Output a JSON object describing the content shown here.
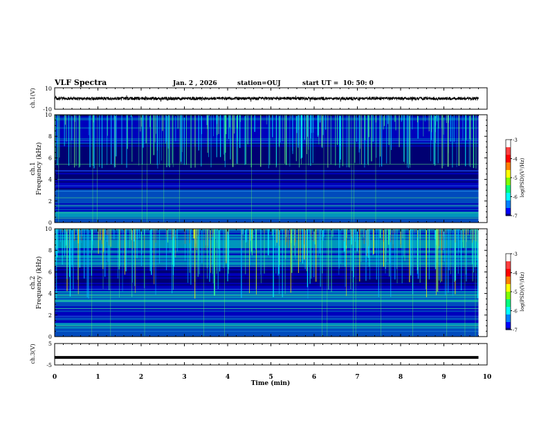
{
  "header": {
    "title": "VLF Spectra",
    "date": "Jan. 2 , 2026",
    "station": "station=OUJ",
    "start": "start UT =  10: 50: 0"
  },
  "colors": {
    "colormap": [
      "#00007f",
      "#0000ff",
      "#0080ff",
      "#00ffff",
      "#80ff80",
      "#ffff00",
      "#ff8000",
      "#ff0000",
      "#7f0000",
      "#ffffff"
    ]
  },
  "chart_data": [
    {
      "type": "line",
      "name": "ch1-waveform",
      "ylabel": "ch.1(V)",
      "ylim": [
        -10,
        10
      ],
      "yticks": [
        "10",
        "-10"
      ],
      "xlim": [
        0,
        10
      ],
      "series": [
        {
          "name": "ch.1 amplitude",
          "approx_mean": 0,
          "approx_band": [
            -1.5,
            1.5
          ]
        }
      ]
    },
    {
      "type": "heatmap",
      "name": "ch1-spectrogram",
      "ylabel": "ch.1\nFrequency (kHz)",
      "ylabel_lines": [
        "ch.1",
        "Frequency (kHz)"
      ],
      "ylim": [
        0,
        10
      ],
      "yticks": [
        "0",
        "2",
        "4",
        "6",
        "8",
        "10"
      ],
      "xlim": [
        0,
        10
      ],
      "data_end_min": 9.8,
      "colorbar": {
        "label": "log(PSD)(V²/Hz)",
        "range": [
          -7,
          -3
        ],
        "ticks": [
          "-3",
          "-4",
          "-5",
          "-6",
          "-7"
        ]
      }
    },
    {
      "type": "heatmap",
      "name": "ch2-spectrogram",
      "ylabel": "ch.2\nFrequency (kHz)",
      "ylabel_lines": [
        "ch.2",
        "Frequency (kHz)"
      ],
      "ylim": [
        0,
        10
      ],
      "yticks": [
        "0",
        "2",
        "4",
        "6",
        "8",
        "10"
      ],
      "xlim": [
        0,
        10
      ],
      "data_end_min": 9.8,
      "colorbar": {
        "label": "log(PSD)(V²/Hz)",
        "range": [
          -7,
          -3
        ],
        "ticks": [
          "-3",
          "-4",
          "-5",
          "-6",
          "-7"
        ]
      }
    },
    {
      "type": "line",
      "name": "ch3-waveform",
      "ylabel": "ch.3(V)",
      "ylim": [
        -5,
        5
      ],
      "yticks": [
        "5",
        "-5"
      ],
      "xlim": [
        0,
        10
      ],
      "series": [
        {
          "name": "ch.3 level",
          "approx_value": -1.5
        }
      ]
    }
  ],
  "xaxis": {
    "label": "Time (min)",
    "ticks": [
      "0",
      "1",
      "2",
      "3",
      "4",
      "5",
      "6",
      "7",
      "8",
      "9",
      "10"
    ]
  }
}
